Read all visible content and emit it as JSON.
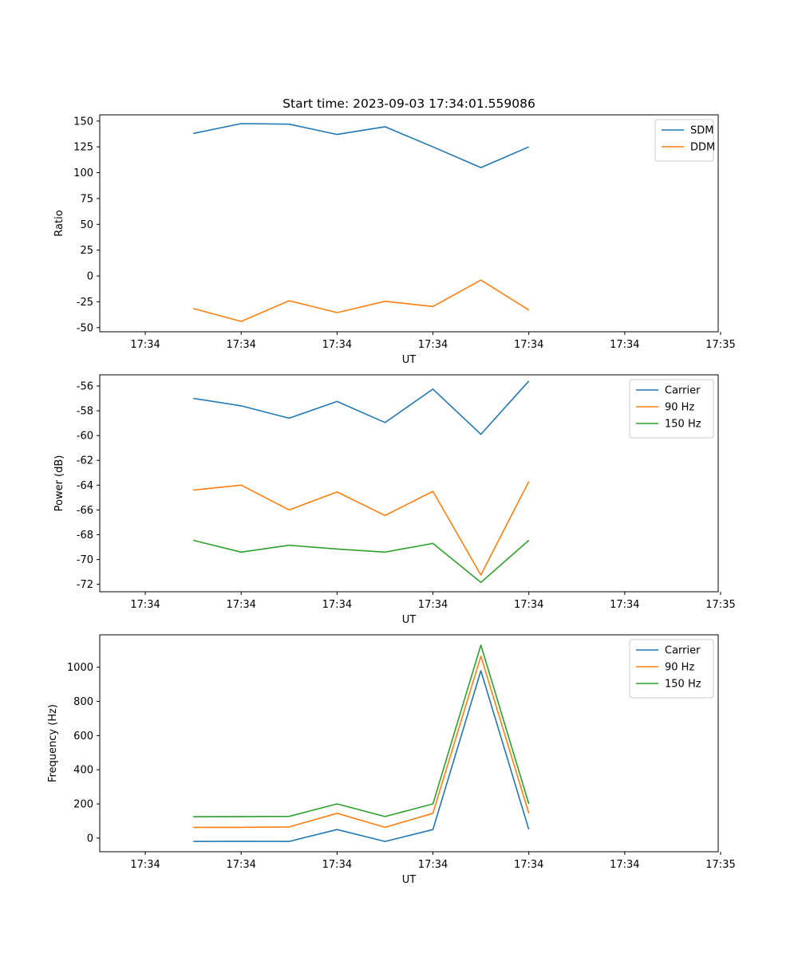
{
  "chart_data": [
    {
      "type": "line",
      "title": "Start time: 2023-09-03 17:34:01.559086",
      "xlabel": "UT",
      "ylabel": "Ratio",
      "x_tick_labels": [
        "17:34",
        "17:34",
        "17:34",
        "17:34",
        "17:34",
        "17:34",
        "17:35"
      ],
      "y_ticks": [
        -50,
        -25,
        0,
        25,
        50,
        75,
        100,
        125,
        150
      ],
      "ylim": [
        -54,
        156
      ],
      "xlim": [
        -0.95,
        11.95
      ],
      "x": [
        1,
        2,
        3,
        4,
        5,
        6,
        7,
        8
      ],
      "legend_position": "top-right",
      "series": [
        {
          "name": "SDM",
          "color": "#1f77b4",
          "values": [
            138,
            147.5,
            147,
            137,
            144.5,
            125,
            105,
            125
          ]
        },
        {
          "name": "DDM",
          "color": "#ff7f0e",
          "values": [
            -31.5,
            -44,
            -24,
            -35.5,
            -24.5,
            -29.5,
            -4,
            -33
          ]
        }
      ]
    },
    {
      "type": "line",
      "title": "",
      "xlabel": "UT",
      "ylabel": "Power (dB)",
      "x_tick_labels": [
        "17:34",
        "17:34",
        "17:34",
        "17:34",
        "17:34",
        "17:34",
        "17:35"
      ],
      "y_ticks": [
        -72,
        -70,
        -68,
        -66,
        -64,
        -62,
        -60,
        -58,
        -56
      ],
      "ylim": [
        -72.6,
        -55.1
      ],
      "xlim": [
        -0.95,
        11.95
      ],
      "x": [
        1,
        2,
        3,
        4,
        5,
        6,
        7,
        8
      ],
      "legend_position": "top-right",
      "series": [
        {
          "name": "Carrier",
          "color": "#1f77b4",
          "values": [
            -57.0,
            -57.6,
            -58.6,
            -57.25,
            -58.95,
            -56.25,
            -59.9,
            -55.6
          ]
        },
        {
          "name": "90 Hz",
          "color": "#ff7f0e",
          "values": [
            -64.4,
            -64.0,
            -66.0,
            -64.55,
            -66.45,
            -64.5,
            -71.25,
            -63.7
          ]
        },
        {
          "name": "150 Hz",
          "color": "#2ca02c",
          "values": [
            -68.45,
            -69.4,
            -68.85,
            -69.15,
            -69.4,
            -68.7,
            -71.85,
            -68.45
          ]
        }
      ]
    },
    {
      "type": "line",
      "title": "",
      "xlabel": "UT",
      "ylabel": "Frequency (Hz)",
      "x_tick_labels": [
        "17:34",
        "17:34",
        "17:34",
        "17:34",
        "17:34",
        "17:34",
        "17:35"
      ],
      "y_ticks": [
        0,
        200,
        400,
        600,
        800,
        1000
      ],
      "ylim": [
        -80,
        1190
      ],
      "xlim": [
        -0.95,
        11.95
      ],
      "x": [
        1,
        2,
        3,
        4,
        5,
        6,
        7,
        8
      ],
      "legend_position": "top-right",
      "series": [
        {
          "name": "Carrier",
          "color": "#1f77b4",
          "values": [
            -20,
            -19,
            -20,
            50,
            -20,
            50,
            980,
            50
          ]
        },
        {
          "name": "90 Hz",
          "color": "#ff7f0e",
          "values": [
            63,
            63,
            65,
            145,
            63,
            145,
            1065,
            145
          ]
        },
        {
          "name": "150 Hz",
          "color": "#2ca02c",
          "values": [
            125,
            126,
            127,
            200,
            126,
            200,
            1130,
            200
          ]
        }
      ]
    }
  ]
}
